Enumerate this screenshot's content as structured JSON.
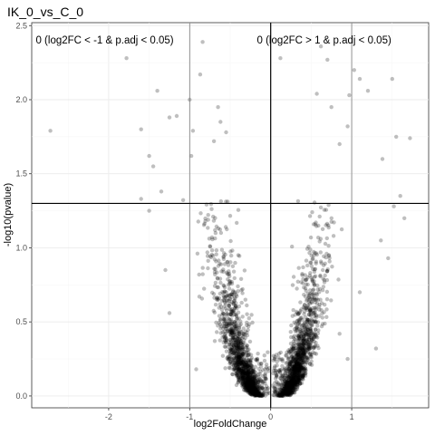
{
  "chart_data": {
    "type": "scatter",
    "title": "IK_0_vs_C_0",
    "xlabel": "log2FoldChange",
    "ylabel": "-log10(pvalue)",
    "xlim": [
      -2.95,
      1.95
    ],
    "ylim": [
      -0.08,
      2.52
    ],
    "x_ticks": [
      -2,
      -1,
      0,
      1
    ],
    "x_tick_labels": [
      "-2",
      "-1",
      "0",
      "1"
    ],
    "y_ticks": [
      0.0,
      0.5,
      1.0,
      1.5,
      2.0,
      2.5
    ],
    "y_tick_labels": [
      "0.0",
      "0.5",
      "1.0",
      "1.5",
      "2.0",
      "2.5"
    ],
    "grid": true,
    "legend": "none",
    "point_color": "#000000",
    "point_opacity": 0.25,
    "reference_lines": {
      "vertical": [
        -1,
        0,
        1
      ],
      "horizontal": [
        1.3
      ]
    },
    "annotations": [
      {
        "text": "0 (log2FC < -1 & p.adj < 0.05)",
        "x": -2.9,
        "y": 2.38
      },
      {
        "text": "0 (log2FC > 1 & p.adj < 0.05)",
        "x": -0.17,
        "y": 2.38
      }
    ],
    "outliers": [
      [
        -2.72,
        1.79
      ],
      [
        -1.78,
        2.28
      ],
      [
        -1.6,
        1.8
      ],
      [
        -1.4,
        2.06
      ],
      [
        -1.25,
        1.88
      ],
      [
        -1.16,
        1.89
      ],
      [
        -1.0,
        2.0
      ],
      [
        -0.96,
        1.79
      ],
      [
        -0.98,
        1.62
      ],
      [
        -0.84,
        2.39
      ],
      [
        -0.87,
        2.17
      ],
      [
        -0.65,
        1.95
      ],
      [
        -0.62,
        1.85
      ],
      [
        -0.55,
        1.78
      ],
      [
        -0.7,
        1.72
      ],
      [
        -1.5,
        1.62
      ],
      [
        -1.45,
        1.55
      ],
      [
        -1.35,
        1.38
      ],
      [
        -1.5,
        1.25
      ],
      [
        -1.6,
        1.33
      ],
      [
        -1.3,
        0.85
      ],
      [
        -1.25,
        0.56
      ],
      [
        -0.92,
        0.18
      ],
      [
        -0.4,
        0.95
      ],
      [
        0.12,
        2.28
      ],
      [
        0.62,
        2.36
      ],
      [
        0.7,
        2.27
      ],
      [
        0.97,
        2.03
      ],
      [
        1.03,
        2.2
      ],
      [
        1.1,
        2.14
      ],
      [
        1.2,
        2.06
      ],
      [
        1.5,
        2.14
      ],
      [
        1.72,
        1.74
      ],
      [
        1.55,
        1.75
      ],
      [
        1.38,
        1.6
      ],
      [
        0.95,
        1.82
      ],
      [
        0.85,
        1.7
      ],
      [
        0.75,
        1.95
      ],
      [
        0.57,
        2.04
      ],
      [
        1.6,
        1.35
      ],
      [
        1.52,
        1.28
      ],
      [
        1.65,
        1.2
      ],
      [
        1.36,
        1.05
      ],
      [
        1.45,
        0.93
      ],
      [
        1.3,
        0.32
      ],
      [
        0.95,
        0.25
      ],
      [
        0.85,
        0.42
      ],
      [
        1.1,
        0.7
      ]
    ],
    "random_seed": 20240
  }
}
